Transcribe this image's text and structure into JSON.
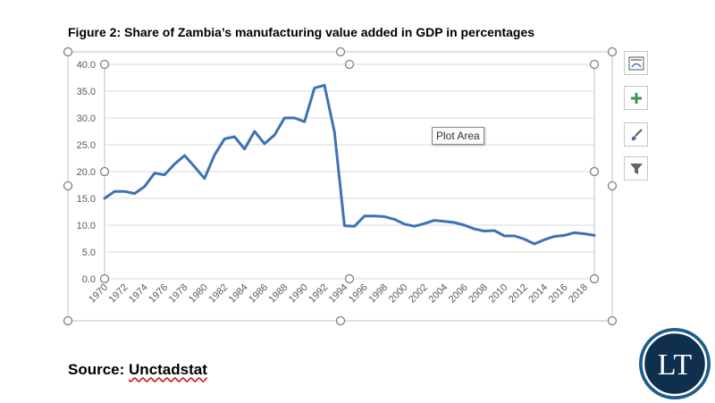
{
  "figure_title": "Figure 2: Share of Zambia’s manufacturing value added in GDP in percentages",
  "tooltip": "Plot Area",
  "source": {
    "label": "Source: ",
    "name": "Unctadstat"
  },
  "logo": {
    "text": "LT"
  },
  "side_buttons": [
    {
      "icon": "chart-layout-icon"
    },
    {
      "icon": "plus-icon"
    },
    {
      "icon": "brush-icon"
    },
    {
      "icon": "filter-icon"
    }
  ],
  "colors": {
    "line": "#3f71b5",
    "grid": "#d9d9d9",
    "axis_text": "#595959",
    "logo_ring": "#1d5d8c",
    "logo_bg": "#0f2f4e"
  },
  "chart_data": {
    "type": "line",
    "title": "Figure 2: Share of Zambia’s manufacturing value added in GDP in percentages",
    "xlabel": "",
    "ylabel": "",
    "ylim": [
      0,
      40
    ],
    "yticks": [
      "0.0",
      "5.0",
      "10.0",
      "15.0",
      "20.0",
      "25.0",
      "30.0",
      "35.0",
      "40.0"
    ],
    "xticks": [
      "1970",
      "1972",
      "1974",
      "1976",
      "1978",
      "1980",
      "1982",
      "1984",
      "1986",
      "1988",
      "1990",
      "1992",
      "1994",
      "1996",
      "1998",
      "2000",
      "2002",
      "2004",
      "2006",
      "2008",
      "2010",
      "2012",
      "2014",
      "2016",
      "2018"
    ],
    "grid": true,
    "legend": "none",
    "x": [
      1970,
      1971,
      1972,
      1973,
      1974,
      1975,
      1976,
      1977,
      1978,
      1979,
      1980,
      1981,
      1982,
      1983,
      1984,
      1985,
      1986,
      1987,
      1988,
      1989,
      1990,
      1991,
      1992,
      1993,
      1994,
      1995,
      1996,
      1997,
      1998,
      1999,
      2000,
      2001,
      2002,
      2003,
      2004,
      2005,
      2006,
      2007,
      2008,
      2009,
      2010,
      2011,
      2012,
      2013,
      2014,
      2015,
      2016,
      2017,
      2018,
      2019
    ],
    "values": [
      15.0,
      16.3,
      16.3,
      15.9,
      17.2,
      19.7,
      19.4,
      21.4,
      23.0,
      20.9,
      18.7,
      23.1,
      26.1,
      26.5,
      24.2,
      27.5,
      25.2,
      26.8,
      30.0,
      30.0,
      29.3,
      35.6,
      36.1,
      27.4,
      9.9,
      9.8,
      11.7,
      11.7,
      11.6,
      11.1,
      10.2,
      9.8,
      10.3,
      10.9,
      10.7,
      10.5,
      10.0,
      9.3,
      8.9,
      9.0,
      8.0,
      8.0,
      7.4,
      6.5,
      7.3,
      7.9,
      8.1,
      8.6,
      8.4,
      8.1
    ]
  }
}
